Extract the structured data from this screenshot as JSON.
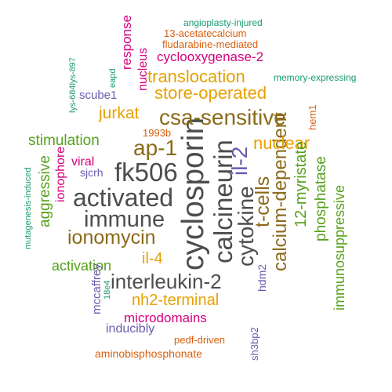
{
  "palette": {
    "gray": "#4d4d4d",
    "olive": "#8b6a1a",
    "gold": "#e6a100",
    "green": "#55a11b",
    "magenta": "#d6007e",
    "purple": "#6a5bae",
    "teal": "#1a9a74",
    "orange": "#d95f0e"
  },
  "words": [
    {
      "text": "cyclosporin",
      "color": "gray"
    },
    {
      "text": "calcineurin",
      "color": "gray"
    },
    {
      "text": "fk506",
      "color": "gray"
    },
    {
      "text": "activated",
      "color": "gray"
    },
    {
      "text": "immune",
      "color": "gray"
    },
    {
      "text": "cytokine",
      "color": "gray"
    },
    {
      "text": "interleukin-2",
      "color": "gray"
    },
    {
      "text": "csa-sensitive",
      "color": "olive"
    },
    {
      "text": "ap-1",
      "color": "olive"
    },
    {
      "text": "il-2",
      "color": "purple"
    },
    {
      "text": "ionomycin",
      "color": "olive"
    },
    {
      "text": "t-cells",
      "color": "olive"
    },
    {
      "text": "calcium-dependent",
      "color": "olive"
    },
    {
      "text": "translocation",
      "color": "gold"
    },
    {
      "text": "store-operated",
      "color": "gold"
    },
    {
      "text": "nuclear",
      "color": "gold"
    },
    {
      "text": "jurkat",
      "color": "gold"
    },
    {
      "text": "il-4",
      "color": "gold"
    },
    {
      "text": "nh2-terminal",
      "color": "gold"
    },
    {
      "text": "12-myristate",
      "color": "green"
    },
    {
      "text": "phosphatase",
      "color": "green"
    },
    {
      "text": "immunosuppressive",
      "color": "green"
    },
    {
      "text": "stimulation",
      "color": "green"
    },
    {
      "text": "aggressive",
      "color": "green"
    },
    {
      "text": "activation",
      "color": "green"
    },
    {
      "text": "cyclooxygenase-2",
      "color": "magenta"
    },
    {
      "text": "response",
      "color": "magenta"
    },
    {
      "text": "nucleus",
      "color": "magenta"
    },
    {
      "text": "ionophore",
      "color": "magenta"
    },
    {
      "text": "viral",
      "color": "magenta"
    },
    {
      "text": "microdomains",
      "color": "magenta"
    },
    {
      "text": "scube1",
      "color": "purple"
    },
    {
      "text": "sjcrh",
      "color": "purple"
    },
    {
      "text": "hdm2",
      "color": "purple"
    },
    {
      "text": "mccaffrey",
      "color": "purple"
    },
    {
      "text": "inducibly",
      "color": "purple"
    },
    {
      "text": "sh3bp2",
      "color": "purple"
    },
    {
      "text": "angioplasty-injured",
      "color": "teal"
    },
    {
      "text": "memory-expressing",
      "color": "teal"
    },
    {
      "text": "lys-684lys-897",
      "color": "teal"
    },
    {
      "text": "eapd",
      "color": "teal"
    },
    {
      "text": "mutagenesis-induced",
      "color": "teal"
    },
    {
      "text": "18e4",
      "color": "teal"
    },
    {
      "text": "13-acetatecalcium",
      "color": "orange"
    },
    {
      "text": "fludarabine-mediated",
      "color": "orange"
    },
    {
      "text": "1993b",
      "color": "orange"
    },
    {
      "text": "hem1",
      "color": "orange"
    },
    {
      "text": "pedf-driven",
      "color": "orange"
    },
    {
      "text": "aminobisphosphonate",
      "color": "orange"
    }
  ]
}
